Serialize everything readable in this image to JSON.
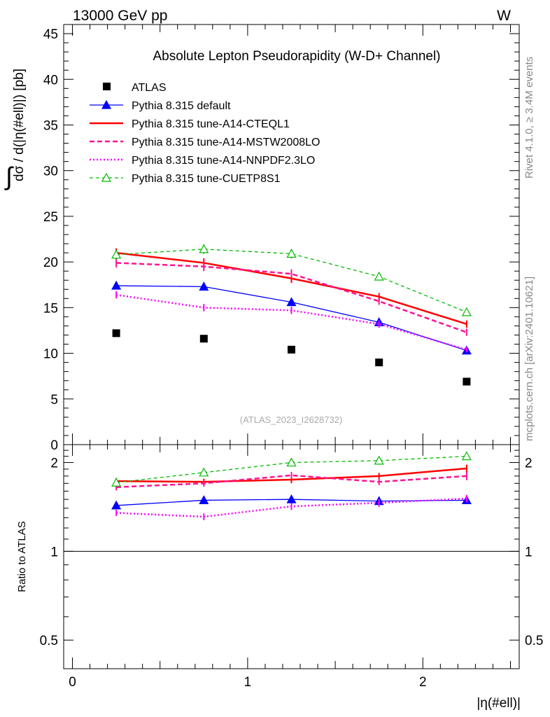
{
  "header": {
    "left": "13000 GeV pp",
    "right": "W"
  },
  "side_labels": {
    "top": "Rivet 4.1.0, ≥ 3.4M events",
    "bottom": "mcplots.cern.ch [arXiv:2401.10621]"
  },
  "chart_data": {
    "type": "line",
    "title": "Absolute Lepton Pseudorapidity (W-D+ Channel)",
    "watermark": "(ATLAS_2023_I2628732)",
    "xlabel": "|η(#ell)|",
    "ylabel": "dσ / d(|η(#ell)|) [pb]",
    "ratio_ylabel": "Ratio to ATLAS",
    "xlim": [
      -0.05,
      2.55
    ],
    "ylim": [
      0,
      46
    ],
    "ratio_ylim": [
      0.4,
      2.3
    ],
    "x_ticks": [
      0,
      1,
      2
    ],
    "y_ticks": [
      0,
      5,
      10,
      15,
      20,
      25,
      30,
      35,
      40,
      45
    ],
    "ratio_ticks": [
      0.5,
      1,
      2
    ],
    "x": [
      0.25,
      0.75,
      1.25,
      1.75,
      2.25
    ],
    "data": {
      "name": "ATLAS",
      "values": [
        12.2,
        11.6,
        10.4,
        9.0,
        6.9
      ]
    },
    "series": [
      {
        "name": "Pythia 8.315 default",
        "color": "#0000ff",
        "style": "solid",
        "marker": "triangle-filled",
        "values": [
          17.4,
          17.3,
          15.6,
          13.4,
          10.3
        ],
        "errors": [
          0.4,
          0.4,
          0.4,
          0.4,
          0.3
        ],
        "ratio": [
          1.43,
          1.49,
          1.5,
          1.48,
          1.49
        ]
      },
      {
        "name": "Pythia 8.315 tune-A14-CTEQL1",
        "color": "#ff0000",
        "style": "solid-thick",
        "marker": "none",
        "values": [
          21.0,
          19.9,
          18.2,
          16.2,
          13.2
        ],
        "errors": [
          0.5,
          0.5,
          0.5,
          0.4,
          0.4
        ],
        "ratio": [
          1.73,
          1.72,
          1.75,
          1.8,
          1.91
        ]
      },
      {
        "name": "Pythia 8.315 tune-A14-MSTW2008LO",
        "color": "#ff1493",
        "style": "dashed",
        "marker": "none",
        "values": [
          19.9,
          19.5,
          18.7,
          15.7,
          12.3
        ],
        "errors": [
          0.5,
          0.5,
          0.5,
          0.4,
          0.4
        ],
        "ratio": [
          1.65,
          1.7,
          1.81,
          1.72,
          1.8
        ]
      },
      {
        "name": "Pythia 8.315 tune-A14-NNPDF2.3LO",
        "color": "#ff00ff",
        "style": "dotted",
        "marker": "none",
        "values": [
          16.4,
          15.0,
          14.7,
          13.2,
          10.4
        ],
        "errors": [
          0.4,
          0.4,
          0.4,
          0.4,
          0.3
        ],
        "ratio": [
          1.35,
          1.31,
          1.42,
          1.46,
          1.51
        ]
      },
      {
        "name": "Pythia 8.315 tune-CUETP8S1",
        "color": "#00bb00",
        "style": "dashed-thin",
        "marker": "triangle-open",
        "values": [
          20.8,
          21.4,
          20.9,
          18.4,
          14.5
        ],
        "errors": [
          0.5,
          0.5,
          0.5,
          0.4,
          0.4
        ],
        "ratio": [
          1.71,
          1.85,
          2.0,
          2.03,
          2.1
        ]
      }
    ]
  }
}
